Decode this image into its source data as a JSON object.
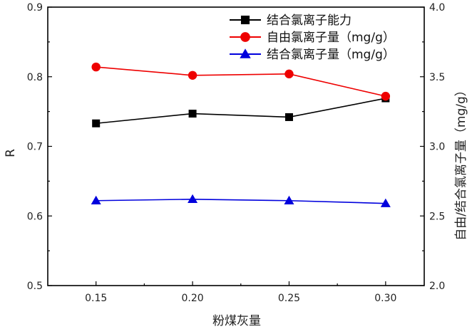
{
  "chart_data": {
    "type": "line",
    "xlabel": "粉煤灰量",
    "ylabel": "R",
    "y2label": "自由/结合氯离子量（mg/g）",
    "x": [
      0.15,
      0.2,
      0.25,
      0.3
    ],
    "x_tick_labels": [
      "0.15",
      "0.20",
      "0.25",
      "0.30"
    ],
    "y_ticks": [
      "0.5",
      "0.6",
      "0.7",
      "0.8",
      "0.9"
    ],
    "y2_ticks": [
      "2.0",
      "2.5",
      "3.0",
      "3.5",
      "4.0"
    ],
    "xlim": [
      0.125,
      0.32
    ],
    "ylim": [
      0.5,
      0.9
    ],
    "y2lim": [
      2.0,
      4.0
    ],
    "legend_position": "top-right",
    "series": [
      {
        "name": "结合氯离子能力",
        "axis": "left",
        "color": "#000000",
        "marker": "square",
        "values": [
          0.733,
          0.747,
          0.742,
          0.769
        ]
      },
      {
        "name": "自由氯离子量（mg/g）",
        "axis": "right",
        "color": "#ee0000",
        "marker": "circle",
        "values": [
          3.57,
          3.51,
          3.52,
          3.36
        ]
      },
      {
        "name": "结合氯离子量（mg/g）",
        "axis": "right",
        "color": "#0000dd",
        "marker": "triangle",
        "values": [
          2.61,
          2.62,
          2.61,
          2.59
        ]
      }
    ]
  }
}
